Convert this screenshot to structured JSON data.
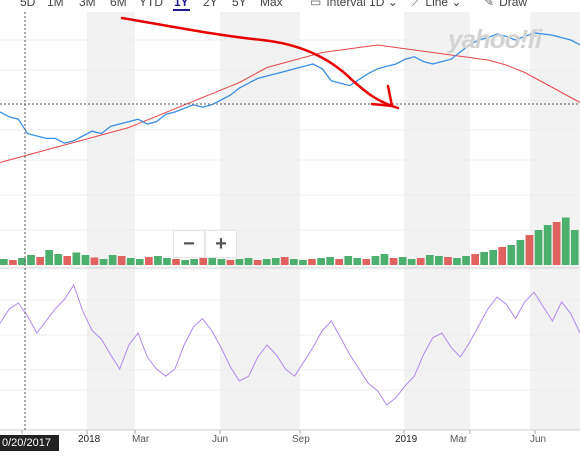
{
  "toolbar": {
    "ranges": [
      "5D",
      "1M",
      "3M",
      "6M",
      "YTD",
      "1Y",
      "2Y",
      "5Y",
      "Max"
    ],
    "active_range": "1Y",
    "interval_label": "Interval",
    "interval_value": "1D",
    "chart_type_label": "Line",
    "draw_label": "Draw"
  },
  "watermark": "yahoo!fi",
  "zoom": {
    "out": "−",
    "in": "+"
  },
  "crosshair_label": "0/20/2017",
  "colors": {
    "price_line": "#3a8ee6",
    "moving_average": "#e6474a",
    "volume_up": "#4caf6e",
    "volume_down": "#e0625f",
    "indicator": "#b388f0",
    "annotation": "#e60000",
    "shaded_band": "#f2f2f2"
  },
  "chart_data": [
    {
      "type": "line",
      "x_ticks": [
        "2018",
        "Mar",
        "Jun",
        "Sep",
        "2019",
        "Mar",
        "Jun"
      ],
      "series": [
        {
          "values": [
            0.3,
            0.26,
            0.24,
            0.12,
            0.1,
            0.08,
            0.08,
            0.04,
            0.06,
            0.1,
            0.14,
            0.12,
            0.18,
            0.2,
            0.22,
            0.24,
            0.2,
            0.22,
            0.28,
            0.3,
            0.33,
            0.36,
            0.34,
            0.36,
            0.4,
            0.44,
            0.5,
            0.54,
            0.58,
            0.6,
            0.62,
            0.64,
            0.66,
            0.68,
            0.7,
            0.66,
            0.56,
            0.54,
            0.52,
            0.57,
            0.62,
            0.66,
            0.68,
            0.7,
            0.74,
            0.76,
            0.72,
            0.7,
            0.72,
            0.74,
            0.8,
            0.86,
            0.9,
            0.92,
            0.95,
            0.93,
            0.9,
            0.93,
            0.96,
            0.95,
            0.94,
            0.92,
            0.9,
            0.86
          ]
        },
        {
          "values": [
            0.02,
            0.04,
            0.06,
            0.08,
            0.1,
            0.12,
            0.14,
            0.16,
            0.18,
            0.2,
            0.22,
            0.24,
            0.26,
            0.28,
            0.3,
            0.33,
            0.36,
            0.39,
            0.42,
            0.45,
            0.48,
            0.51,
            0.54,
            0.57,
            0.6,
            0.63,
            0.66,
            0.7,
            0.74,
            0.78,
            0.8,
            0.82,
            0.84,
            0.86,
            0.88,
            0.9,
            0.91,
            0.92,
            0.93,
            0.94,
            0.95,
            0.96,
            0.95,
            0.94,
            0.93,
            0.92,
            0.91,
            0.9,
            0.89,
            0.88,
            0.87,
            0.86,
            0.85,
            0.84,
            0.82,
            0.8,
            0.77,
            0.74,
            0.7,
            0.66,
            0.62,
            0.58,
            0.54,
            0.5
          ]
        }
      ]
    },
    {
      "type": "bar",
      "x_ticks": [
        "2018",
        "Mar",
        "Jun",
        "Sep",
        "2019",
        "Mar",
        "Jun"
      ],
      "values": [
        0.12,
        0.1,
        0.14,
        0.2,
        0.16,
        0.3,
        0.22,
        0.18,
        0.25,
        0.2,
        0.15,
        0.12,
        0.2,
        0.18,
        0.14,
        0.12,
        0.16,
        0.18,
        0.14,
        0.12,
        0.1,
        0.12,
        0.14,
        0.16,
        0.12,
        0.1,
        0.12,
        0.14,
        0.1,
        0.12,
        0.14,
        0.16,
        0.12,
        0.1,
        0.12,
        0.14,
        0.16,
        0.12,
        0.18,
        0.14,
        0.12,
        0.18,
        0.22,
        0.14,
        0.16,
        0.12,
        0.14,
        0.2,
        0.18,
        0.16,
        0.14,
        0.18,
        0.22,
        0.26,
        0.3,
        0.36,
        0.4,
        0.5,
        0.6,
        0.7,
        0.8,
        0.86,
        0.95,
        0.7
      ]
    },
    {
      "type": "line",
      "x_ticks": [
        "2018",
        "Mar",
        "Jun",
        "Sep",
        "2019",
        "Mar",
        "Jun"
      ],
      "series": [
        {
          "values": [
            0.68,
            0.8,
            0.85,
            0.74,
            0.6,
            0.7,
            0.8,
            0.88,
            1.0,
            0.78,
            0.62,
            0.55,
            0.42,
            0.3,
            0.5,
            0.6,
            0.4,
            0.3,
            0.24,
            0.3,
            0.5,
            0.65,
            0.72,
            0.62,
            0.48,
            0.32,
            0.2,
            0.24,
            0.4,
            0.5,
            0.42,
            0.3,
            0.24,
            0.36,
            0.48,
            0.62,
            0.7,
            0.56,
            0.42,
            0.3,
            0.18,
            0.12,
            0.0,
            0.06,
            0.16,
            0.24,
            0.42,
            0.56,
            0.6,
            0.48,
            0.4,
            0.52,
            0.66,
            0.8,
            0.9,
            0.84,
            0.72,
            0.86,
            0.94,
            0.82,
            0.7,
            0.86,
            0.76,
            0.6
          ]
        }
      ]
    }
  ]
}
